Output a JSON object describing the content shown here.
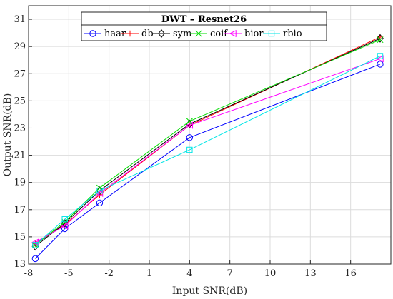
{
  "chart_data": {
    "type": "line",
    "title": "DWT – Resnet26",
    "xlabel": "Input SNR(dB)",
    "ylabel": "Output SNR(dB)",
    "xlim": [
      -8,
      19
    ],
    "ylim": [
      13,
      32
    ],
    "xticks": [
      -8,
      -5,
      -2,
      1,
      4,
      7,
      10,
      13,
      16
    ],
    "yticks": [
      13,
      15,
      17,
      19,
      21,
      23,
      25,
      27,
      29,
      31
    ],
    "grid": true,
    "legend_position": "top",
    "x": [
      -7.5,
      -5.3,
      -2.7,
      4.0,
      18.2
    ],
    "series": [
      {
        "name": "haar",
        "color": "#0000ff",
        "marker": "circle",
        "values": [
          13.4,
          15.6,
          17.5,
          22.3,
          27.7
        ]
      },
      {
        "name": "db",
        "color": "#ff0000",
        "marker": "plus",
        "values": [
          14.5,
          15.9,
          18.1,
          23.2,
          29.7
        ]
      },
      {
        "name": "sym",
        "color": "#000000",
        "marker": "diamond",
        "values": [
          14.3,
          16.0,
          18.4,
          23.3,
          29.6
        ]
      },
      {
        "name": "coif",
        "color": "#00dd00",
        "marker": "x",
        "values": [
          14.4,
          16.1,
          18.6,
          23.5,
          29.5
        ]
      },
      {
        "name": "bior",
        "color": "#ff00ff",
        "marker": "triangle",
        "values": [
          14.6,
          15.8,
          18.2,
          23.2,
          28.1
        ]
      },
      {
        "name": "rbio",
        "color": "#00e5e5",
        "marker": "square",
        "values": [
          14.4,
          16.3,
          18.4,
          21.4,
          28.3
        ]
      }
    ]
  }
}
